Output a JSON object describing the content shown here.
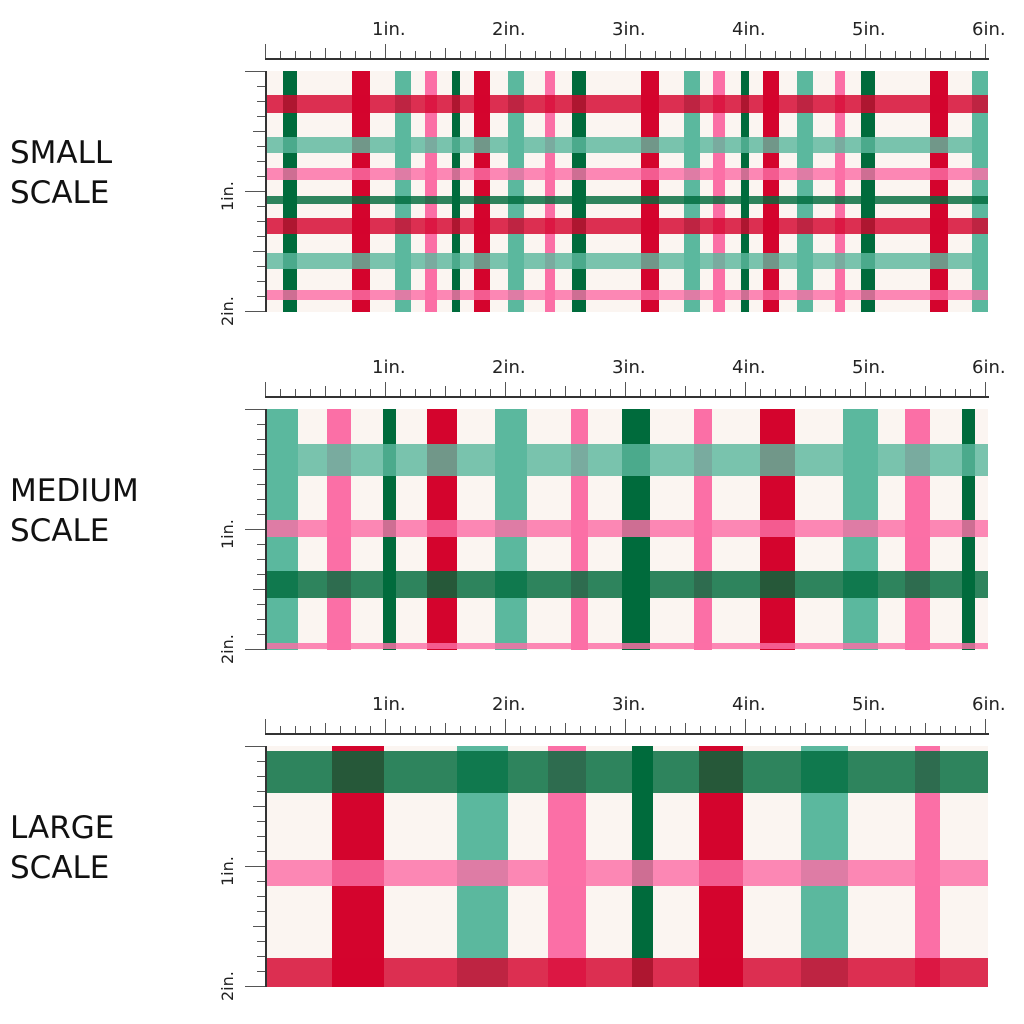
{
  "panels": [
    {
      "label_line1": "SMALL",
      "label_line2": "SCALE"
    },
    {
      "label_line1": "MEDIUM",
      "label_line2": "SCALE"
    },
    {
      "label_line1": "LARGE",
      "label_line2": "SCALE"
    }
  ],
  "ruler": {
    "top_labels": [
      "1in.",
      "2in.",
      "3in.",
      "4in.",
      "5in.",
      "6in."
    ],
    "left_labels": [
      "1in.",
      "2in."
    ]
  },
  "colors": {
    "background": "#fbf5f1",
    "red": "#d4042d",
    "dark_green": "#006b3c",
    "teal": "#5bb89e",
    "pink": "#fb6fa6"
  }
}
